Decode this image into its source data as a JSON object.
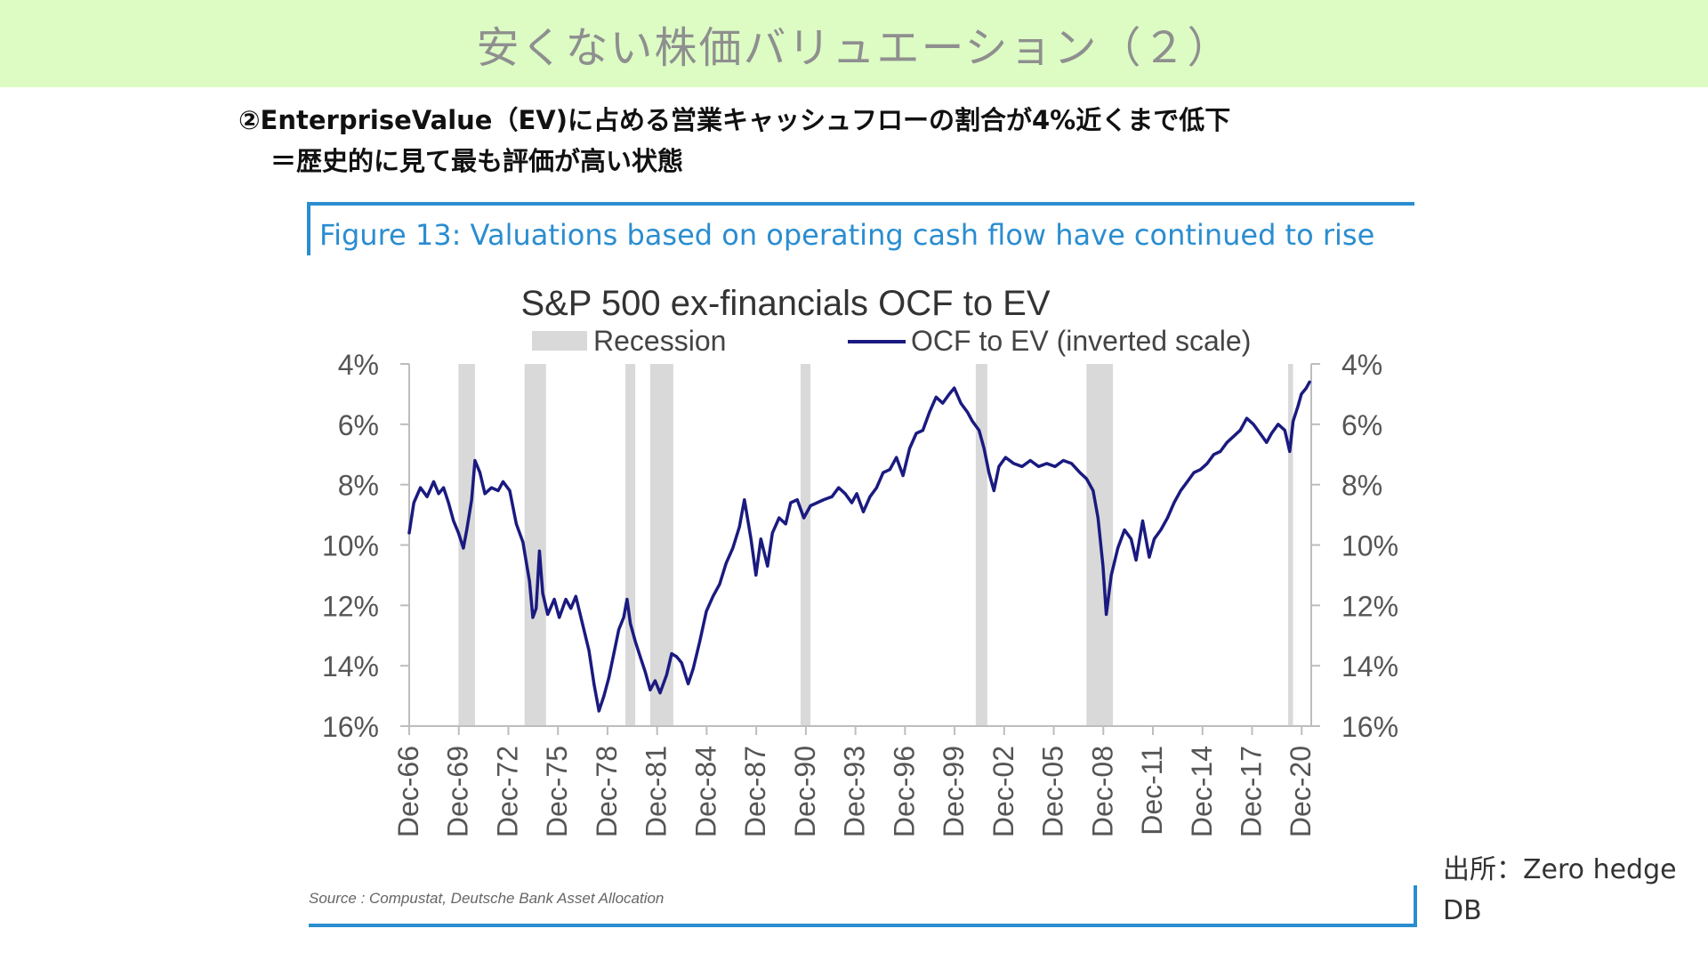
{
  "slide": {
    "title": "安くない株価バリュエーション（２）",
    "subtitle_line1": "②EnterpriseValue（EV)に占める営業キャッシュフローの割合が4%近くまで低下",
    "subtitle_line2": "＝歴史的に見て最も評価が高い状態",
    "attribution_line1": "出所：Zero hedge",
    "attribution_line2": "DB"
  },
  "figure": {
    "caption": "Figure 13: Valuations based on operating cash flow have continued to rise",
    "source": "Source : Compustat, Deutsche Bank Asset Allocation"
  },
  "colors": {
    "title_band": "#dcfcc4",
    "caption_blue": "#2a8dd0",
    "series_navy": "#1a1a80",
    "recession_gray": "#d9d9d9"
  },
  "chart_data": {
    "type": "line",
    "title": "S&P 500 ex-financials OCF to EV",
    "legend": [
      {
        "key": "recession",
        "label": "Recession"
      },
      {
        "key": "series",
        "label": "OCF to EV (inverted scale)"
      }
    ],
    "legend_position": "top",
    "y_axis": {
      "inverted": true,
      "ylim": [
        4,
        16
      ],
      "ticks": [
        4,
        6,
        8,
        10,
        12,
        14,
        16
      ],
      "tick_labels": [
        "4%",
        "6%",
        "8%",
        "10%",
        "12%",
        "14%",
        "16%"
      ],
      "dual_axis": true
    },
    "x_axis": {
      "xlim": [
        1966.92,
        2021.5
      ],
      "ticks": [
        1966.92,
        1969.92,
        1972.92,
        1975.92,
        1978.92,
        1981.92,
        1984.92,
        1987.92,
        1990.92,
        1993.92,
        1996.92,
        1999.92,
        2002.92,
        2005.92,
        2008.92,
        2011.92,
        2014.92,
        2017.92,
        2020.92
      ],
      "tick_labels": [
        "Dec-66",
        "Dec-69",
        "Dec-72",
        "Dec-75",
        "Dec-78",
        "Dec-81",
        "Dec-84",
        "Dec-87",
        "Dec-90",
        "Dec-93",
        "Dec-96",
        "Dec-99",
        "Dec-02",
        "Dec-05",
        "Dec-08",
        "Dec-11",
        "Dec-14",
        "Dec-17",
        "Dec-20"
      ]
    },
    "recessions": [
      [
        1969.9,
        1970.9
      ],
      [
        1973.9,
        1975.2
      ],
      [
        1980.0,
        1980.6
      ],
      [
        1981.5,
        1982.9
      ],
      [
        1990.6,
        1991.2
      ],
      [
        2001.2,
        2001.9
      ],
      [
        2007.9,
        2009.5
      ],
      [
        2020.1,
        2020.4
      ]
    ],
    "series": [
      {
        "values": [
          [
            1966.92,
            9.6
          ],
          [
            1967.2,
            8.6
          ],
          [
            1967.6,
            8.1
          ],
          [
            1968.0,
            8.4
          ],
          [
            1968.4,
            7.9
          ],
          [
            1968.7,
            8.3
          ],
          [
            1969.0,
            8.1
          ],
          [
            1969.3,
            8.6
          ],
          [
            1969.6,
            9.2
          ],
          [
            1969.9,
            9.6
          ],
          [
            1970.2,
            10.1
          ],
          [
            1970.4,
            9.5
          ],
          [
            1970.7,
            8.5
          ],
          [
            1970.9,
            7.2
          ],
          [
            1971.2,
            7.6
          ],
          [
            1971.5,
            8.3
          ],
          [
            1971.9,
            8.1
          ],
          [
            1972.3,
            8.2
          ],
          [
            1972.6,
            7.9
          ],
          [
            1973.0,
            8.2
          ],
          [
            1973.4,
            9.3
          ],
          [
            1973.8,
            9.9
          ],
          [
            1974.2,
            11.2
          ],
          [
            1974.4,
            12.4
          ],
          [
            1974.6,
            12.1
          ],
          [
            1974.8,
            10.2
          ],
          [
            1975.0,
            11.6
          ],
          [
            1975.3,
            12.3
          ],
          [
            1975.7,
            11.8
          ],
          [
            1976.0,
            12.4
          ],
          [
            1976.4,
            11.8
          ],
          [
            1976.7,
            12.1
          ],
          [
            1977.0,
            11.7
          ],
          [
            1977.4,
            12.6
          ],
          [
            1977.8,
            13.5
          ],
          [
            1978.1,
            14.6
          ],
          [
            1978.4,
            15.5
          ],
          [
            1978.7,
            15.0
          ],
          [
            1979.0,
            14.4
          ],
          [
            1979.3,
            13.6
          ],
          [
            1979.6,
            12.8
          ],
          [
            1979.9,
            12.4
          ],
          [
            1980.1,
            11.8
          ],
          [
            1980.3,
            12.6
          ],
          [
            1980.6,
            13.2
          ],
          [
            1980.9,
            13.7
          ],
          [
            1981.2,
            14.2
          ],
          [
            1981.5,
            14.8
          ],
          [
            1981.8,
            14.5
          ],
          [
            1982.1,
            14.9
          ],
          [
            1982.5,
            14.3
          ],
          [
            1982.8,
            13.6
          ],
          [
            1983.1,
            13.7
          ],
          [
            1983.4,
            13.9
          ],
          [
            1983.8,
            14.6
          ],
          [
            1984.1,
            14.1
          ],
          [
            1984.5,
            13.2
          ],
          [
            1984.9,
            12.2
          ],
          [
            1985.3,
            11.7
          ],
          [
            1985.7,
            11.3
          ],
          [
            1986.1,
            10.6
          ],
          [
            1986.5,
            10.1
          ],
          [
            1986.9,
            9.4
          ],
          [
            1987.2,
            8.5
          ],
          [
            1987.6,
            9.8
          ],
          [
            1987.9,
            11.0
          ],
          [
            1988.2,
            9.8
          ],
          [
            1988.6,
            10.7
          ],
          [
            1988.9,
            9.6
          ],
          [
            1989.3,
            9.1
          ],
          [
            1989.7,
            9.3
          ],
          [
            1990.0,
            8.6
          ],
          [
            1990.4,
            8.5
          ],
          [
            1990.8,
            9.1
          ],
          [
            1991.2,
            8.7
          ],
          [
            1991.6,
            8.6
          ],
          [
            1992.0,
            8.5
          ],
          [
            1992.5,
            8.4
          ],
          [
            1992.9,
            8.1
          ],
          [
            1993.3,
            8.3
          ],
          [
            1993.7,
            8.6
          ],
          [
            1994.0,
            8.3
          ],
          [
            1994.4,
            8.9
          ],
          [
            1994.8,
            8.4
          ],
          [
            1995.2,
            8.1
          ],
          [
            1995.6,
            7.6
          ],
          [
            1996.0,
            7.5
          ],
          [
            1996.4,
            7.1
          ],
          [
            1996.8,
            7.7
          ],
          [
            1997.2,
            6.8
          ],
          [
            1997.6,
            6.3
          ],
          [
            1998.0,
            6.2
          ],
          [
            1998.4,
            5.6
          ],
          [
            1998.8,
            5.1
          ],
          [
            1999.2,
            5.3
          ],
          [
            1999.6,
            5.0
          ],
          [
            1999.9,
            4.8
          ],
          [
            2000.3,
            5.3
          ],
          [
            2000.7,
            5.6
          ],
          [
            2001.0,
            5.9
          ],
          [
            2001.4,
            6.2
          ],
          [
            2001.7,
            6.8
          ],
          [
            2002.0,
            7.6
          ],
          [
            2002.3,
            8.2
          ],
          [
            2002.6,
            7.4
          ],
          [
            2003.0,
            7.1
          ],
          [
            2003.5,
            7.3
          ],
          [
            2004.0,
            7.4
          ],
          [
            2004.5,
            7.2
          ],
          [
            2005.0,
            7.4
          ],
          [
            2005.5,
            7.3
          ],
          [
            2006.0,
            7.4
          ],
          [
            2006.5,
            7.2
          ],
          [
            2007.0,
            7.3
          ],
          [
            2007.5,
            7.6
          ],
          [
            2007.9,
            7.8
          ],
          [
            2008.3,
            8.2
          ],
          [
            2008.6,
            9.1
          ],
          [
            2008.9,
            10.7
          ],
          [
            2009.1,
            12.3
          ],
          [
            2009.4,
            11.0
          ],
          [
            2009.8,
            10.1
          ],
          [
            2010.2,
            9.5
          ],
          [
            2010.6,
            9.8
          ],
          [
            2010.9,
            10.5
          ],
          [
            2011.3,
            9.2
          ],
          [
            2011.7,
            10.4
          ],
          [
            2012.0,
            9.8
          ],
          [
            2012.4,
            9.5
          ],
          [
            2012.8,
            9.1
          ],
          [
            2013.2,
            8.6
          ],
          [
            2013.6,
            8.2
          ],
          [
            2014.0,
            7.9
          ],
          [
            2014.4,
            7.6
          ],
          [
            2014.8,
            7.5
          ],
          [
            2015.2,
            7.3
          ],
          [
            2015.6,
            7.0
          ],
          [
            2016.0,
            6.9
          ],
          [
            2016.4,
            6.6
          ],
          [
            2016.8,
            6.4
          ],
          [
            2017.2,
            6.2
          ],
          [
            2017.6,
            5.8
          ],
          [
            2018.0,
            6.0
          ],
          [
            2018.4,
            6.3
          ],
          [
            2018.8,
            6.6
          ],
          [
            2019.1,
            6.3
          ],
          [
            2019.5,
            6.0
          ],
          [
            2019.9,
            6.2
          ],
          [
            2020.2,
            6.9
          ],
          [
            2020.4,
            5.9
          ],
          [
            2020.7,
            5.4
          ],
          [
            2020.9,
            5.0
          ],
          [
            2021.2,
            4.8
          ],
          [
            2021.4,
            4.6
          ]
        ]
      }
    ]
  }
}
